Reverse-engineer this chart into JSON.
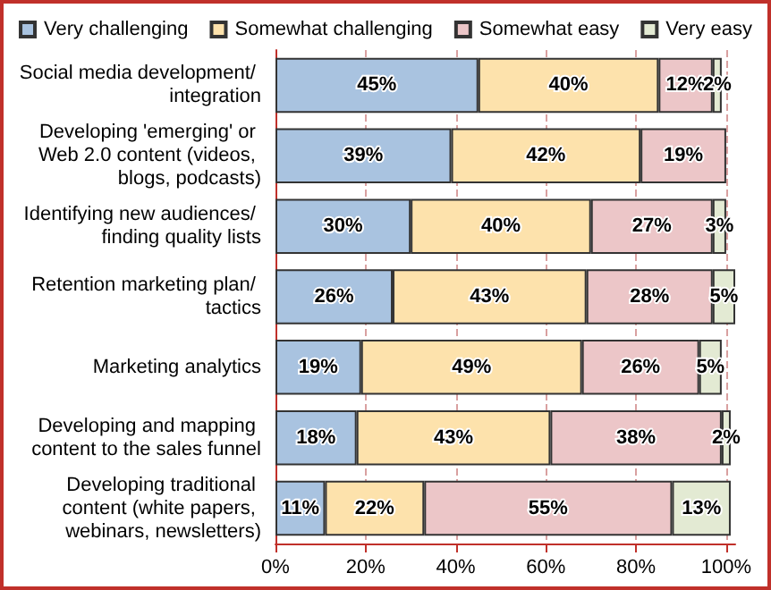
{
  "chart_data": {
    "type": "bar",
    "orientation": "horizontal",
    "stacked": true,
    "categories": [
      "Social media development/ integration",
      "Developing 'emerging' or Web 2.0 content (videos, blogs, podcasts)",
      "Identifying new audiences/ finding quality lists",
      "Retention marketing plan/ tactics",
      "Marketing analytics",
      "Developing and mapping content to the sales funnel",
      "Developing traditional content (white papers, webinars, newsletters)"
    ],
    "series": [
      {
        "name": "Very challenging",
        "color": "#a9c3e0",
        "values": [
          45,
          39,
          30,
          26,
          19,
          18,
          11
        ],
        "value_labels": [
          "45%",
          "39%",
          "30%",
          "26%",
          "19%",
          "18%",
          "11%"
        ]
      },
      {
        "name": "Somewhat challenging",
        "color": "#fde2ac",
        "values": [
          40,
          42,
          40,
          43,
          49,
          43,
          22
        ],
        "value_labels": [
          "40%",
          "42%",
          "40%",
          "43%",
          "49%",
          "43%",
          "22%"
        ]
      },
      {
        "name": "Somewhat easy",
        "color": "#ecc6c8",
        "values": [
          12,
          19,
          27,
          28,
          26,
          38,
          55
        ],
        "value_labels": [
          "12%",
          "19%",
          "27%",
          "28%",
          "26%",
          "38%",
          "55%"
        ]
      },
      {
        "name": "Very easy",
        "color": "#e3ead3",
        "values": [
          2,
          null,
          3,
          5,
          5,
          2,
          13
        ],
        "value_labels": [
          "2%",
          null,
          "3%",
          "5%",
          "5%",
          "2%",
          "13%"
        ]
      }
    ],
    "xlim": [
      0,
      102
    ],
    "xticks": [
      {
        "value": 0,
        "label": "0%"
      },
      {
        "value": 20,
        "label": "20%"
      },
      {
        "value": 40,
        "label": "40%"
      },
      {
        "value": 60,
        "label": "60%"
      },
      {
        "value": 80,
        "label": "80%"
      },
      {
        "value": 100,
        "label": "100%"
      }
    ],
    "grid": "x",
    "legend": "top"
  }
}
